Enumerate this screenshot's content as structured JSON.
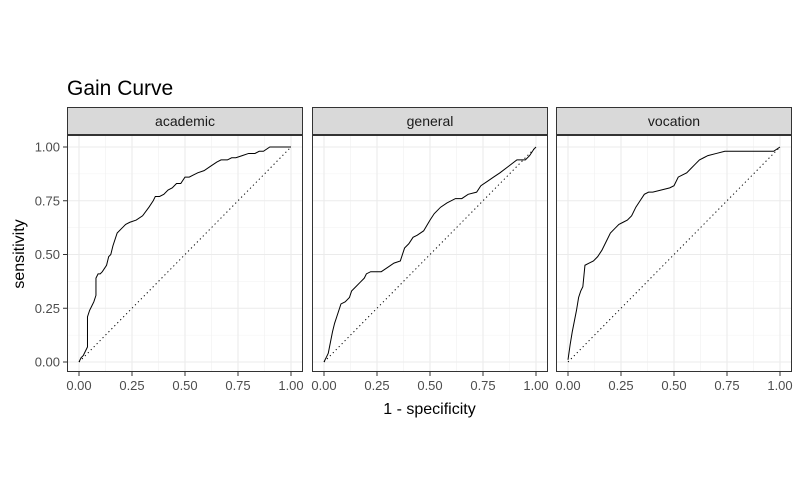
{
  "chart_data": {
    "type": "line",
    "title": "Gain Curve",
    "xlabel": "1 - specificity",
    "ylabel": "sensitivity",
    "xlim": [
      0,
      1
    ],
    "ylim": [
      0,
      1
    ],
    "x_ticks": [
      "0.00",
      "0.25",
      "0.50",
      "0.75",
      "1.00"
    ],
    "y_ticks": [
      "0.00",
      "0.25",
      "0.50",
      "0.75",
      "1.00"
    ],
    "grid": true,
    "reference_line": "dotted diagonal",
    "panels": [
      {
        "label": "academic",
        "x": [
          0,
          0.01,
          0.02,
          0.03,
          0.04,
          0.04,
          0.05,
          0.06,
          0.07,
          0.08,
          0.08,
          0.09,
          0.1,
          0.11,
          0.13,
          0.14,
          0.15,
          0.16,
          0.18,
          0.2,
          0.21,
          0.22,
          0.24,
          0.27,
          0.3,
          0.33,
          0.35,
          0.36,
          0.38,
          0.4,
          0.42,
          0.44,
          0.46,
          0.48,
          0.5,
          0.52,
          0.54,
          0.56,
          0.59,
          0.62,
          0.65,
          0.67,
          0.7,
          0.72,
          0.74,
          0.77,
          0.8,
          0.83,
          0.85,
          0.87,
          0.9,
          0.93,
          0.96,
          1.0
        ],
        "y": [
          0,
          0.02,
          0.03,
          0.05,
          0.07,
          0.21,
          0.24,
          0.26,
          0.28,
          0.31,
          0.39,
          0.41,
          0.41,
          0.42,
          0.45,
          0.49,
          0.5,
          0.54,
          0.6,
          0.62,
          0.63,
          0.64,
          0.65,
          0.66,
          0.68,
          0.72,
          0.75,
          0.77,
          0.77,
          0.78,
          0.8,
          0.81,
          0.83,
          0.83,
          0.86,
          0.86,
          0.87,
          0.88,
          0.89,
          0.91,
          0.93,
          0.94,
          0.94,
          0.95,
          0.95,
          0.96,
          0.97,
          0.97,
          0.98,
          0.98,
          1.0,
          1.0,
          1.0,
          1.0
        ]
      },
      {
        "label": "general",
        "x": [
          0,
          0.01,
          0.02,
          0.03,
          0.04,
          0.05,
          0.06,
          0.08,
          0.1,
          0.12,
          0.13,
          0.15,
          0.17,
          0.19,
          0.2,
          0.22,
          0.24,
          0.27,
          0.3,
          0.33,
          0.36,
          0.38,
          0.4,
          0.42,
          0.44,
          0.47,
          0.5,
          0.52,
          0.55,
          0.58,
          0.62,
          0.65,
          0.68,
          0.72,
          0.74,
          0.77,
          0.8,
          0.83,
          0.87,
          0.91,
          0.95,
          0.97,
          0.99,
          1.0
        ],
        "y": [
          0,
          0.02,
          0.04,
          0.09,
          0.14,
          0.18,
          0.21,
          0.27,
          0.28,
          0.3,
          0.33,
          0.35,
          0.37,
          0.39,
          0.41,
          0.42,
          0.42,
          0.42,
          0.44,
          0.46,
          0.47,
          0.53,
          0.55,
          0.58,
          0.59,
          0.61,
          0.66,
          0.69,
          0.72,
          0.74,
          0.76,
          0.76,
          0.78,
          0.79,
          0.82,
          0.84,
          0.86,
          0.88,
          0.91,
          0.94,
          0.94,
          0.96,
          0.99,
          1.0
        ]
      },
      {
        "label": "vocation",
        "x": [
          0,
          0.01,
          0.02,
          0.03,
          0.04,
          0.05,
          0.06,
          0.07,
          0.08,
          0.1,
          0.12,
          0.14,
          0.16,
          0.18,
          0.2,
          0.22,
          0.24,
          0.26,
          0.28,
          0.3,
          0.32,
          0.34,
          0.36,
          0.38,
          0.4,
          0.44,
          0.48,
          0.5,
          0.52,
          0.54,
          0.56,
          0.58,
          0.6,
          0.62,
          0.64,
          0.66,
          0.7,
          0.74,
          0.8,
          0.86,
          0.92,
          0.97,
          1.0
        ],
        "y": [
          0.01,
          0.08,
          0.14,
          0.19,
          0.24,
          0.3,
          0.33,
          0.35,
          0.45,
          0.46,
          0.47,
          0.49,
          0.52,
          0.56,
          0.6,
          0.62,
          0.64,
          0.65,
          0.66,
          0.68,
          0.72,
          0.75,
          0.78,
          0.79,
          0.79,
          0.8,
          0.81,
          0.82,
          0.86,
          0.87,
          0.88,
          0.9,
          0.92,
          0.94,
          0.95,
          0.96,
          0.97,
          0.98,
          0.98,
          0.98,
          0.98,
          0.98,
          1.0
        ]
      }
    ]
  }
}
